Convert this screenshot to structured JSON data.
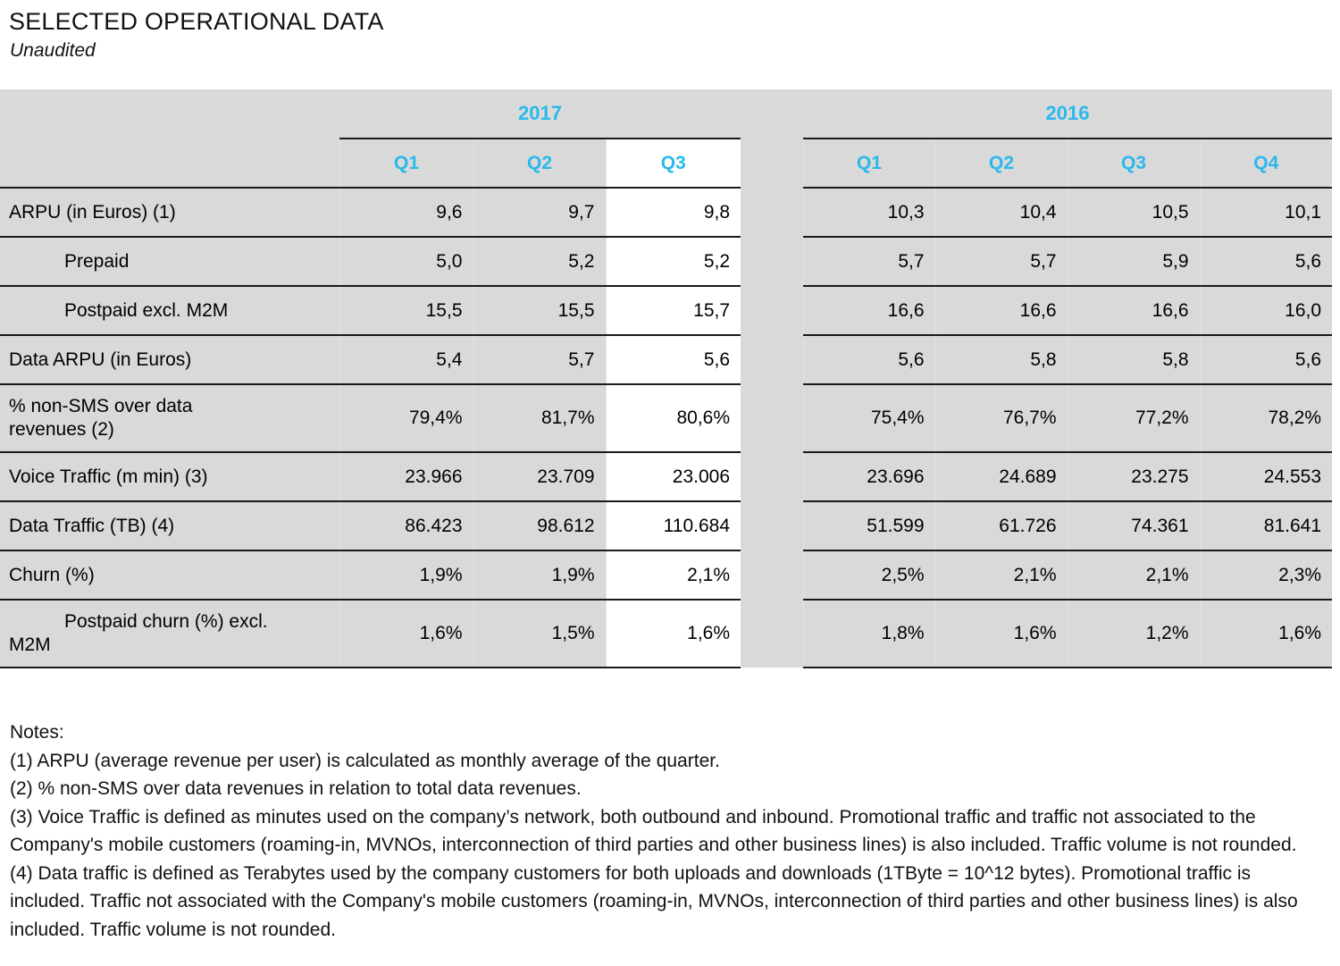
{
  "page": {
    "title": "SELECTED OPERATIONAL DATA",
    "subtitle": "Unaudited"
  },
  "colors": {
    "accent_cyan": "#29b9ec",
    "cell_gray": "#d9d9d9",
    "highlight_white": "#ffffff",
    "border_black": "#1a1a1a"
  },
  "table": {
    "year_groups": [
      {
        "label": "2017",
        "quarters": [
          "Q1",
          "Q2",
          "Q3"
        ]
      },
      {
        "label": "2016",
        "quarters": [
          "Q1",
          "Q2",
          "Q3",
          "Q4"
        ]
      }
    ],
    "highlighted_column": "2017 Q3",
    "rows": [
      {
        "label_lines": [
          "ARPU (in Euros) (1)"
        ],
        "indent": false,
        "values_2017": [
          "9,6",
          "9,7",
          "9,8"
        ],
        "values_2016": [
          "10,3",
          "10,4",
          "10,5",
          "10,1"
        ]
      },
      {
        "label_lines": [
          "Prepaid"
        ],
        "indent": true,
        "values_2017": [
          "5,0",
          "5,2",
          "5,2"
        ],
        "values_2016": [
          "5,7",
          "5,7",
          "5,9",
          "5,6"
        ]
      },
      {
        "label_lines": [
          "Postpaid excl. M2M"
        ],
        "indent": true,
        "values_2017": [
          "15,5",
          "15,5",
          "15,7"
        ],
        "values_2016": [
          "16,6",
          "16,6",
          "16,6",
          "16,0"
        ]
      },
      {
        "label_lines": [
          "Data ARPU (in Euros)"
        ],
        "indent": false,
        "values_2017": [
          "5,4",
          "5,7",
          "5,6"
        ],
        "values_2016": [
          "5,6",
          "5,8",
          "5,8",
          "5,6"
        ]
      },
      {
        "label_lines": [
          "% non-SMS over data",
          "revenues (2)"
        ],
        "indent": false,
        "values_2017": [
          "79,4%",
          "81,7%",
          "80,6%"
        ],
        "values_2016": [
          "75,4%",
          "76,7%",
          "77,2%",
          "78,2%"
        ]
      },
      {
        "label_lines": [
          "Voice Traffic (m min) (3)"
        ],
        "indent": false,
        "values_2017": [
          "23.966",
          "23.709",
          "23.006"
        ],
        "values_2016": [
          "23.696",
          "24.689",
          "23.275",
          "24.553"
        ]
      },
      {
        "label_lines": [
          "Data Traffic (TB) (4)"
        ],
        "indent": false,
        "values_2017": [
          "86.423",
          "98.612",
          "110.684"
        ],
        "values_2016": [
          "51.599",
          "61.726",
          "74.361",
          "81.641"
        ]
      },
      {
        "label_lines": [
          "Churn (%)"
        ],
        "indent": false,
        "values_2017": [
          "1,9%",
          "1,9%",
          "2,1%"
        ],
        "values_2016": [
          "2,5%",
          "2,1%",
          "2,1%",
          "2,3%"
        ]
      },
      {
        "label_lines": [
          "Postpaid churn (%) excl.",
          "M2M"
        ],
        "indent": true,
        "values_2017": [
          "1,6%",
          "1,5%",
          "1,6%"
        ],
        "values_2016": [
          "1,8%",
          "1,6%",
          "1,2%",
          "1,6%"
        ]
      }
    ]
  },
  "notes": {
    "heading": "Notes:",
    "items": [
      "(1) ARPU (average revenue per user) is calculated as monthly average of the quarter.",
      "(2) % non-SMS over data revenues in relation to total data revenues.",
      "(3) Voice Traffic is defined as minutes used on the company’s network, both outbound and inbound. Promotional traffic and traffic not associated to the Company's mobile customers (roaming-in, MVNOs, interconnection of third parties and other business lines) is also included. Traffic volume is not rounded.",
      "(4) Data traffic is defined as Terabytes used by the company customers for both uploads and downloads (1TByte = 10^12 bytes). Promotional traffic is included. Traffic not associated with the Company's mobile customers (roaming-in, MVNOs, interconnection of third parties and other business lines) is also included. Traffic volume is not rounded."
    ]
  }
}
